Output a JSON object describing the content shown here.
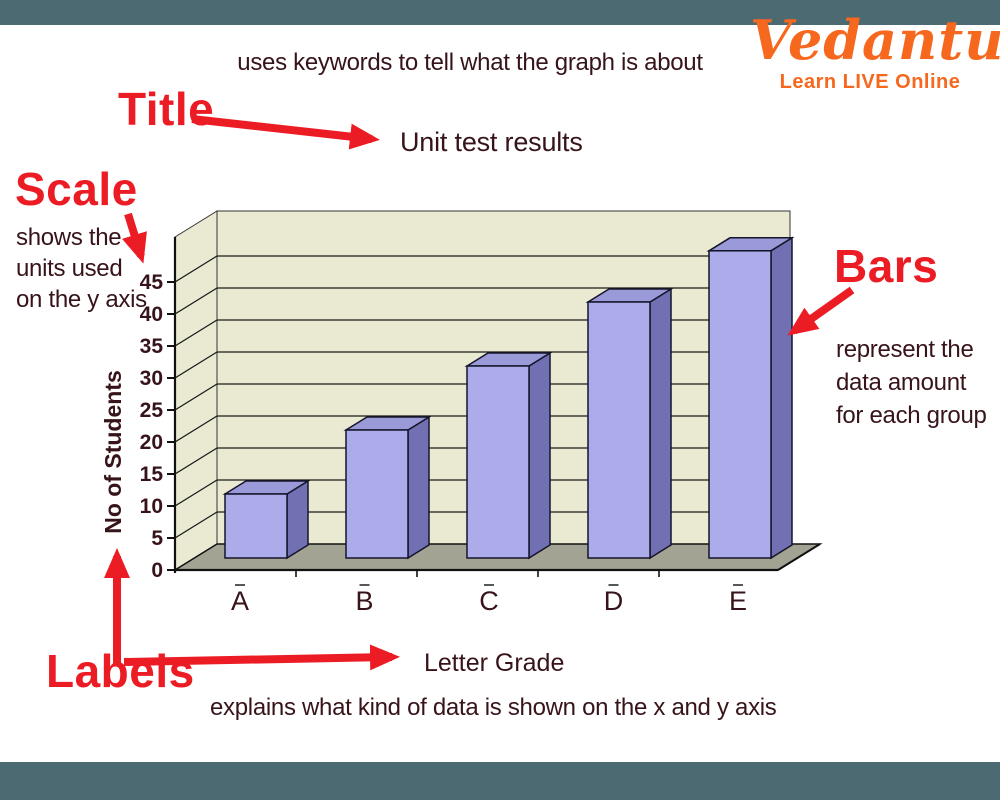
{
  "page": {
    "background_color": "#4C6A72",
    "card_color": "#FFFFFF"
  },
  "logo": {
    "brand": "Vedantu",
    "tagline": "Learn LIVE Online",
    "color": "#F7681F"
  },
  "callouts": {
    "accent_color": "#EC1C24",
    "text_color": "#371419",
    "title_word": "Title",
    "title_note": "uses keywords to tell what the graph is about",
    "scale_word": "Scale",
    "scale_note_lines": [
      "shows the",
      "units used",
      "on the y axis"
    ],
    "bars_word": "Bars",
    "bars_note_lines": [
      "represent the",
      "data amount",
      "for each group"
    ],
    "labels_word": "Labels",
    "labels_note": "explains what kind of data is shown on the x and y axis"
  },
  "chart_data": {
    "type": "bar",
    "style": "3d-column",
    "title": "Unit test results",
    "categories": [
      "A",
      "B",
      "C",
      "D",
      "E"
    ],
    "values": [
      10,
      20,
      30,
      40,
      48
    ],
    "xlabel": "Letter Grade",
    "ylabel": "No of Students",
    "ylim": [
      0,
      50
    ],
    "yticks": [
      0,
      5,
      10,
      15,
      20,
      25,
      30,
      35,
      40,
      45
    ],
    "grid": "horizontal",
    "legend": "none",
    "colors": {
      "bar_front": "#ACACEB",
      "bar_side": "#7170B2",
      "bar_top": "#9B9AD8",
      "bar_outline": "#15152B",
      "wall": "#EAEAD3",
      "floor": "#A3A394",
      "gridline": "#1A1A1A",
      "axis_text": "#371419"
    }
  }
}
